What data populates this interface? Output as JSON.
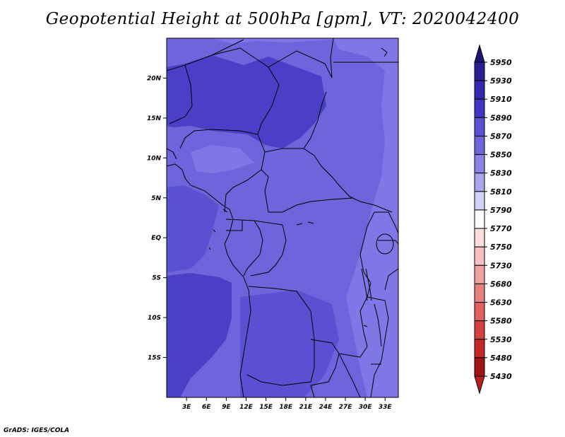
{
  "title": "Geopotential Height at 500hPa [gpm], VT: 2020042400",
  "footer": "GrADS: IGES/COLA",
  "map": {
    "lon_range": [
      0,
      35
    ],
    "lat_range": [
      -20,
      25
    ],
    "x_tick_labels": [
      {
        "lon": 3,
        "label": "3E"
      },
      {
        "lon": 6,
        "label": "6E"
      },
      {
        "lon": 9,
        "label": "9E"
      },
      {
        "lon": 12,
        "label": "12E"
      },
      {
        "lon": 15,
        "label": "15E"
      },
      {
        "lon": 18,
        "label": "18E"
      },
      {
        "lon": 21,
        "label": "21E"
      },
      {
        "lon": 24,
        "label": "24E"
      },
      {
        "lon": 27,
        "label": "27E"
      },
      {
        "lon": 30,
        "label": "30E"
      },
      {
        "lon": 33,
        "label": "33E"
      }
    ],
    "y_tick_labels": [
      {
        "lat": 20,
        "label": "20N"
      },
      {
        "lat": 15,
        "label": "15N"
      },
      {
        "lat": 10,
        "label": "10N"
      },
      {
        "lat": 5,
        "label": "5N"
      },
      {
        "lat": 0,
        "label": "EQ"
      },
      {
        "lat": -5,
        "label": "5S"
      },
      {
        "lat": -10,
        "label": "10S"
      },
      {
        "lat": -15,
        "label": "15S"
      }
    ]
  },
  "colorbar": {
    "levels": [
      {
        "label": "5950",
        "color": "#1e1478"
      },
      {
        "label": "5930",
        "color": "#2a1e96"
      },
      {
        "label": "5910",
        "color": "#3427b0"
      },
      {
        "label": "5890",
        "color": "#3e36c4"
      },
      {
        "label": "5870",
        "color": "#5a50d2"
      },
      {
        "label": "5850",
        "color": "#6e64dc"
      },
      {
        "label": "5830",
        "color": "#8a82e8"
      },
      {
        "label": "5810",
        "color": "#aaa4ee"
      },
      {
        "label": "5790",
        "color": "#d2d0f4"
      },
      {
        "label": "5770",
        "color": "#ffffff"
      },
      {
        "label": "5750",
        "color": "#fcdede"
      },
      {
        "label": "5730",
        "color": "#f8c0c0"
      },
      {
        "label": "5680",
        "color": "#f0a0a0"
      },
      {
        "label": "5630",
        "color": "#e88080"
      },
      {
        "label": "5580",
        "color": "#e06060"
      },
      {
        "label": "5530",
        "color": "#d44040"
      },
      {
        "label": "5480",
        "color": "#c42828"
      },
      {
        "label": "5430",
        "color": "#a01414"
      }
    ],
    "bottom_color": "#b82020"
  },
  "field_colors": {
    "base": "#6e64dc",
    "light": "#7f77e6",
    "mid": "#5a50d2",
    "dark": "#4a40c8"
  }
}
